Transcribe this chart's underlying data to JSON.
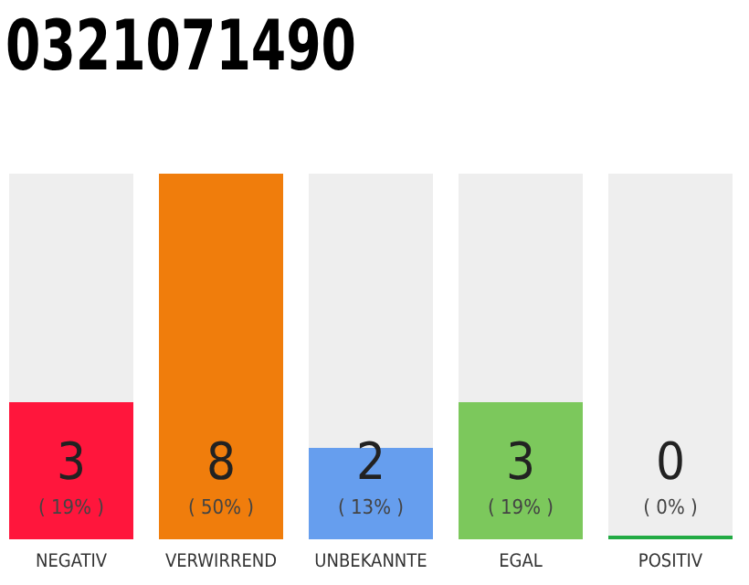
{
  "chart_data": {
    "type": "bar",
    "title": "0321071490",
    "categories": [
      "NEGATIV",
      "VERWIRREND",
      "UNBEKANNTE",
      "EGAL",
      "POSITIV"
    ],
    "values": [
      3,
      8,
      2,
      3,
      0
    ],
    "colors": [
      "#ff163c",
      "#f07d0c",
      "#669eee",
      "#7cc85c",
      "#22aa44"
    ],
    "ylim": [
      0,
      8
    ],
    "tick_labels": "x",
    "data_labels": true,
    "annotations": [
      "( 19% )",
      "( 50% )",
      "( 13% )",
      "( 19% )",
      "( 0% )"
    ]
  }
}
